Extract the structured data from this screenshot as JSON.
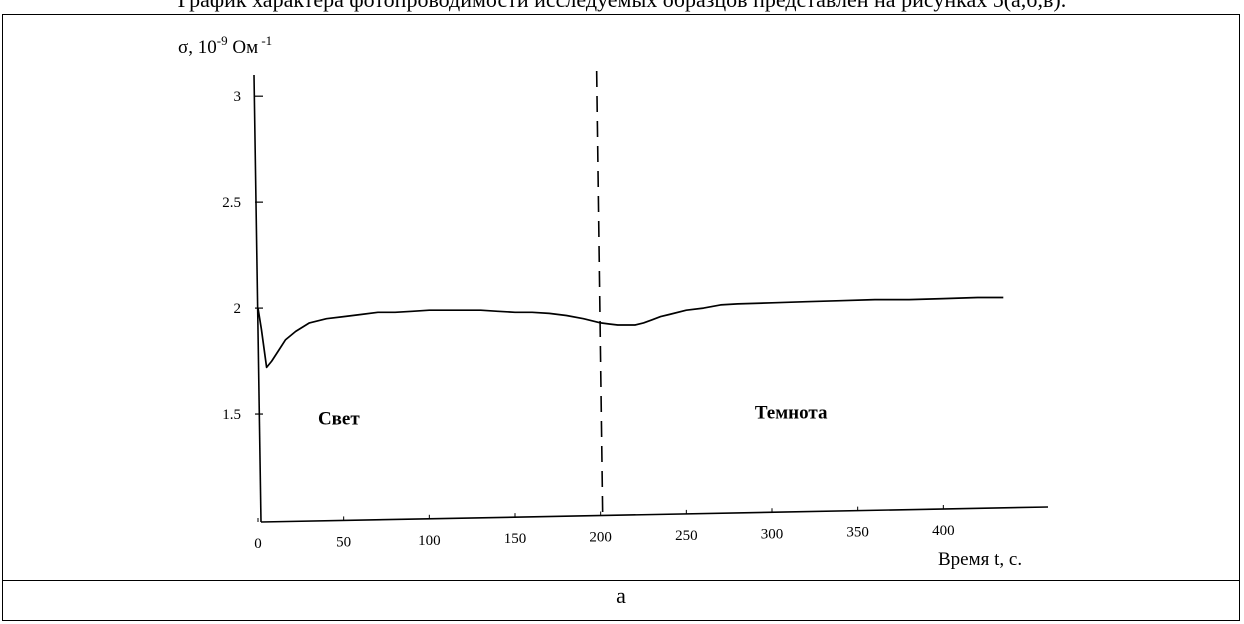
{
  "page": {
    "top_caption": "График характера фотопроводимости исследуемых образцов представлен на рисунках 5(а,б,в).",
    "subfigure_label": "а"
  },
  "chart_data": {
    "type": "line",
    "title": "",
    "xlabel": "Время t, с.",
    "ylabel_base": "σ, 10",
    "ylabel_exp": "-9",
    "ylabel_unit": " Ом",
    "ylabel_unit_exp": " -1",
    "xlim": [
      0,
      450
    ],
    "ylim": [
      1.0,
      3.1
    ],
    "x_ticks": [
      {
        "value": 0,
        "label": "0"
      },
      {
        "value": 50,
        "label": "50"
      },
      {
        "value": 100,
        "label": "100"
      },
      {
        "value": 150,
        "label": "150"
      },
      {
        "value": 200,
        "label": "200"
      },
      {
        "value": 250,
        "label": "250"
      },
      {
        "value": 300,
        "label": "300"
      },
      {
        "value": 350,
        "label": "350"
      },
      {
        "value": 400,
        "label": "400"
      }
    ],
    "y_ticks": [
      {
        "value": 1.5,
        "label": "1.5"
      },
      {
        "value": 2,
        "label": "2"
      },
      {
        "value": 2.5,
        "label": "2.5"
      },
      {
        "value": 3,
        "label": "3"
      }
    ],
    "grid": false,
    "divider_x": 200,
    "regions": [
      {
        "label": "Свет",
        "x": 35,
        "y": 1.45
      },
      {
        "label": "Темнота",
        "x": 290,
        "y": 1.48
      }
    ],
    "series": [
      {
        "x": [
          0,
          2,
          5,
          8,
          12,
          16,
          22,
          30,
          40,
          50,
          60,
          70,
          80,
          90,
          100,
          110,
          120,
          130,
          140,
          150,
          160,
          170,
          180,
          190,
          195,
          200,
          205,
          210,
          215,
          220,
          225,
          230,
          235,
          240,
          250,
          260,
          270,
          280,
          300,
          320,
          340,
          360,
          380,
          400,
          420,
          435
        ],
        "y": [
          2.0,
          1.9,
          1.72,
          1.75,
          1.8,
          1.85,
          1.89,
          1.93,
          1.95,
          1.96,
          1.97,
          1.98,
          1.98,
          1.985,
          1.99,
          1.99,
          1.99,
          1.99,
          1.985,
          1.98,
          1.98,
          1.975,
          1.965,
          1.95,
          1.94,
          1.93,
          1.925,
          1.92,
          1.92,
          1.92,
          1.93,
          1.945,
          1.96,
          1.97,
          1.99,
          2.0,
          2.015,
          2.02,
          2.025,
          2.03,
          2.035,
          2.04,
          2.04,
          2.045,
          2.05,
          2.05
        ]
      }
    ]
  }
}
